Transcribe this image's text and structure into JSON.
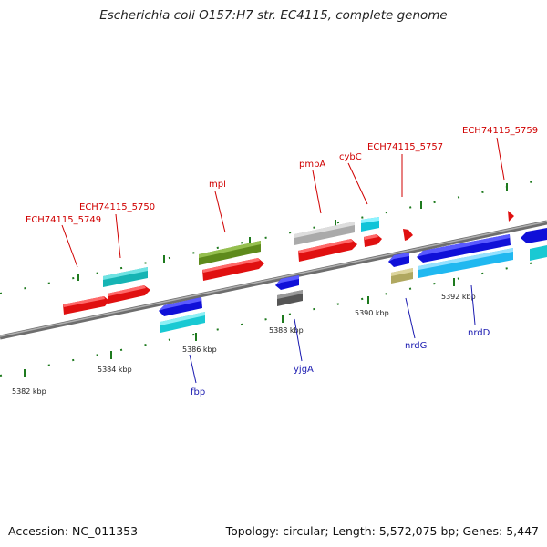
{
  "title": "Escherichia coli O157:H7 str. EC4115, complete genome",
  "footer": {
    "accession": "Accession: NC_011353",
    "summary": "Topology: circular; Length: 5,572,075 bp; Genes: 5,447"
  },
  "colors": {
    "backbone": "#808080",
    "tick": "#1e7a1e",
    "label_red": "#d00000",
    "label_blue": "#1a1ab0"
  },
  "scale_labels": [
    "5382 kbp",
    "5384 kbp",
    "5386 kbp",
    "5388 kbp",
    "5390 kbp",
    "5392 kbp"
  ],
  "top_labels": [
    "ECH74115_5749",
    "ECH74115_5750",
    "mpl",
    "pmbA",
    "cybC",
    "ECH74115_5757",
    "ECH74115_5759"
  ],
  "bottom_labels": [
    "fbp",
    "yjgA",
    "nrdG",
    "nrdD"
  ]
}
